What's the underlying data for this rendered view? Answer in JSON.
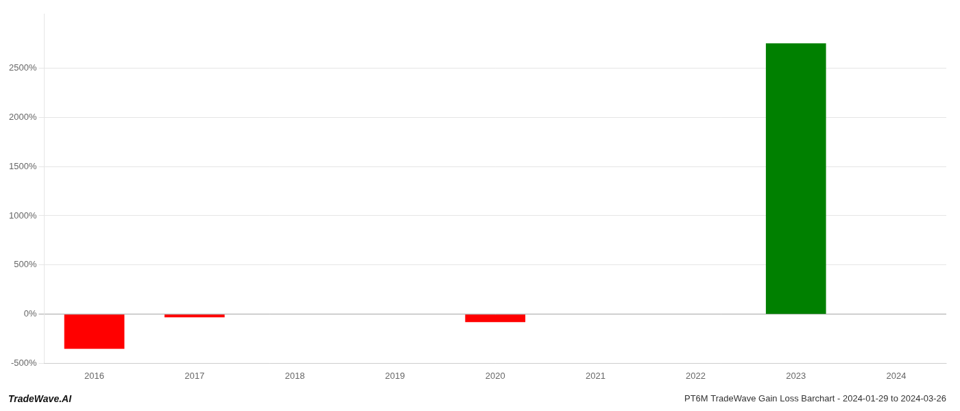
{
  "chart_data": {
    "type": "bar",
    "title": "PT6M TradeWave Gain Loss Barchart - 2024-01-29 to 2024-03-26",
    "annotations": [
      "TradeWave.AI"
    ],
    "categories": [
      "2016",
      "2017",
      "2018",
      "2019",
      "2020",
      "2021",
      "2022",
      "2023",
      "2024"
    ],
    "values": [
      -350,
      -30,
      0,
      0,
      -80,
      0,
      0,
      2750,
      0
    ],
    "colors": [
      "#ff0000",
      "#ff0000",
      "#008000",
      "#008000",
      "#ff0000",
      "#008000",
      "#008000",
      "#008000",
      "#008000"
    ],
    "ylim": [
      -500,
      3050
    ],
    "yticks": [
      {
        "value": -500,
        "label": "-500%"
      },
      {
        "value": 0,
        "label": "0%"
      },
      {
        "value": 500,
        "label": "500%"
      },
      {
        "value": 1000,
        "label": "1000%"
      },
      {
        "value": 1500,
        "label": "1500%"
      },
      {
        "value": 2000,
        "label": "2000%"
      },
      {
        "value": 2500,
        "label": "2500%"
      }
    ],
    "grid": true
  }
}
